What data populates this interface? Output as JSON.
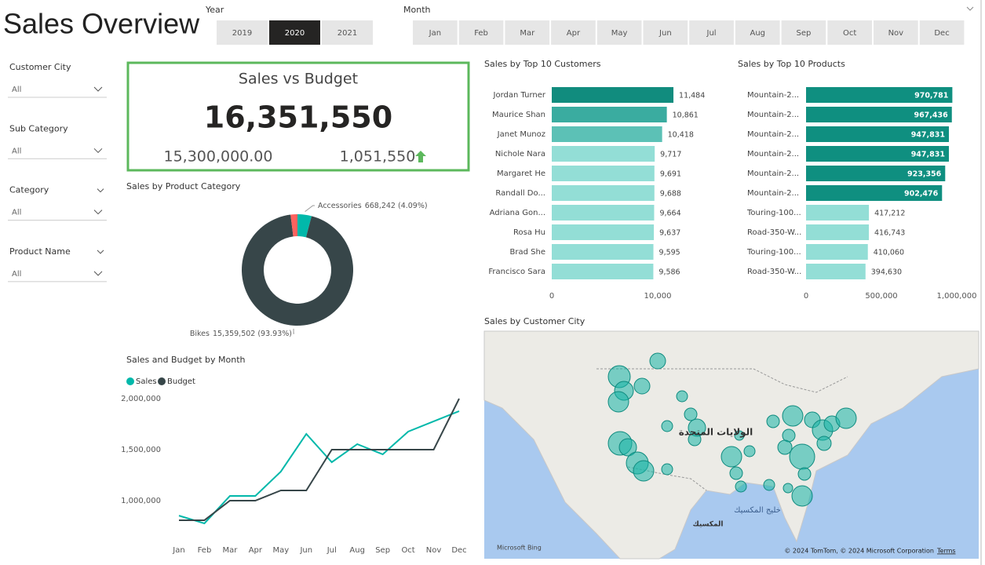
{
  "header": {
    "title": "Sales Overview",
    "year_label": "Year",
    "years": [
      "2019",
      "2020",
      "2021"
    ],
    "selected_year": 1,
    "month_label": "Month",
    "months": [
      "Jan",
      "Feb",
      "Mar",
      "Apr",
      "May",
      "Jun",
      "Jul",
      "Aug",
      "Sep",
      "Oct",
      "Nov",
      "Dec"
    ]
  },
  "filters": [
    {
      "label": "Customer City",
      "value": "All"
    },
    {
      "label": "Sub Category",
      "value": "All"
    },
    {
      "label": "Category",
      "value": "All"
    },
    {
      "label": "Product Name",
      "value": "All"
    }
  ],
  "kpi": {
    "title": "Sales vs Budget",
    "value": "16,351,550",
    "goal": "15,300,000.00",
    "variance": "1,051,550",
    "color": "#5cb85c"
  },
  "chart_data": [
    {
      "type": "pie",
      "title": "Sales by Product Category",
      "donut": true,
      "categories": [
        "Accessories",
        "Bikes",
        null
      ],
      "values": [
        668242,
        15359502,
        323806
      ],
      "value_labels": [
        "668,242 (4.09%)",
        "15,359,502 (93.93%)",
        null
      ],
      "colors": [
        "#01b8aa",
        "#374649",
        "#fd625e"
      ]
    },
    {
      "type": "hbar",
      "title": "Sales by Top 10 Customers",
      "categories": [
        "Jordan Turner",
        "Maurice Shan",
        "Janet Munoz",
        "Nichole Nara",
        "Margaret He",
        "Randall Do...",
        "Adriana Gon...",
        "Rosa Hu",
        "Brad She",
        "Francisco Sara"
      ],
      "values": [
        11484,
        10861,
        10418,
        9717,
        9691,
        9688,
        9664,
        9637,
        9595,
        9586
      ],
      "value_labels": [
        "11,484",
        "10,861",
        "10,418",
        "9,717",
        "9,691",
        "9,688",
        "9,664",
        "9,637",
        "9,595",
        "9,586"
      ],
      "colors": [
        "#118c7e",
        "#3aaca0",
        "#5cc1b6",
        "#93ded6",
        "#93ded6",
        "#93ded6",
        "#93ded6",
        "#93ded6",
        "#93ded6",
        "#93ded6"
      ],
      "xlim": [
        0,
        14000
      ],
      "xticks": [
        0,
        {
          "value": 10000,
          "label": "10,000"
        }
      ]
    },
    {
      "type": "hbar",
      "title": "Sales by Top 10 Products",
      "categories": [
        "Mountain-2...",
        "Mountain-2...",
        "Mountain-2...",
        "Mountain-2...",
        "Mountain-2...",
        "Mountain-2...",
        "Touring-100...",
        "Road-350-W...",
        "Touring-100...",
        "Road-350-W..."
      ],
      "values": [
        970781,
        967436,
        947831,
        947831,
        923356,
        902476,
        417212,
        416743,
        410060,
        394630
      ],
      "value_labels": [
        "970,781",
        "967,436",
        "947,831",
        "947,831",
        "923,356",
        "902,476",
        "417,212",
        "416,743",
        "410,060",
        "394,630"
      ],
      "colors": [
        "#0f8f80",
        "#0f8f80",
        "#0f8f80",
        "#0f8f80",
        "#0f8f80",
        "#0f8f80",
        "#93ded6",
        "#93ded6",
        "#93ded6",
        "#93ded6"
      ],
      "xlim": [
        0,
        1000000
      ],
      "xticks": [
        0,
        {
          "value": 500000,
          "label": "500,000"
        },
        {
          "value": 1000000,
          "label": "1,000,000"
        }
      ]
    },
    {
      "type": "line",
      "title": "Sales and Budget by Month",
      "categories": [
        "Jan",
        "Feb",
        "Mar",
        "Apr",
        "May",
        "Jun",
        "Jul",
        "Aug",
        "Sep",
        "Oct",
        "Nov",
        "Dec"
      ],
      "series": [
        {
          "name": "Sales",
          "color": "#01b8aa",
          "values": [
            853000,
            777000,
            1046000,
            1046000,
            1285000,
            1654000,
            1377000,
            1554000,
            1454000,
            1677000,
            1777000,
            1877000
          ]
        },
        {
          "name": "Budget",
          "color": "#374649",
          "values": [
            808000,
            808000,
            1000000,
            1000000,
            1100000,
            1100000,
            1500000,
            1500000,
            1500000,
            1500000,
            1500000,
            2000000
          ]
        }
      ],
      "ylim": [
        600000,
        2050000
      ],
      "yticks": [
        {
          "value": 1000000,
          "label": "1,000,000"
        },
        {
          "value": 1500000,
          "label": "1,500,000"
        },
        {
          "value": 2000000,
          "label": "2,000,000"
        }
      ]
    },
    {
      "type": "map",
      "title": "Sales by Customer City",
      "country_label": "الولايات المتحدة",
      "mexico_label": "المكسيك",
      "gulf_label": "خليج المكسيك",
      "provider": "Microsoft Bing",
      "attribution": "© 2024 TomTom, © 2024 Microsoft Corporation",
      "terms": "Terms"
    }
  ]
}
